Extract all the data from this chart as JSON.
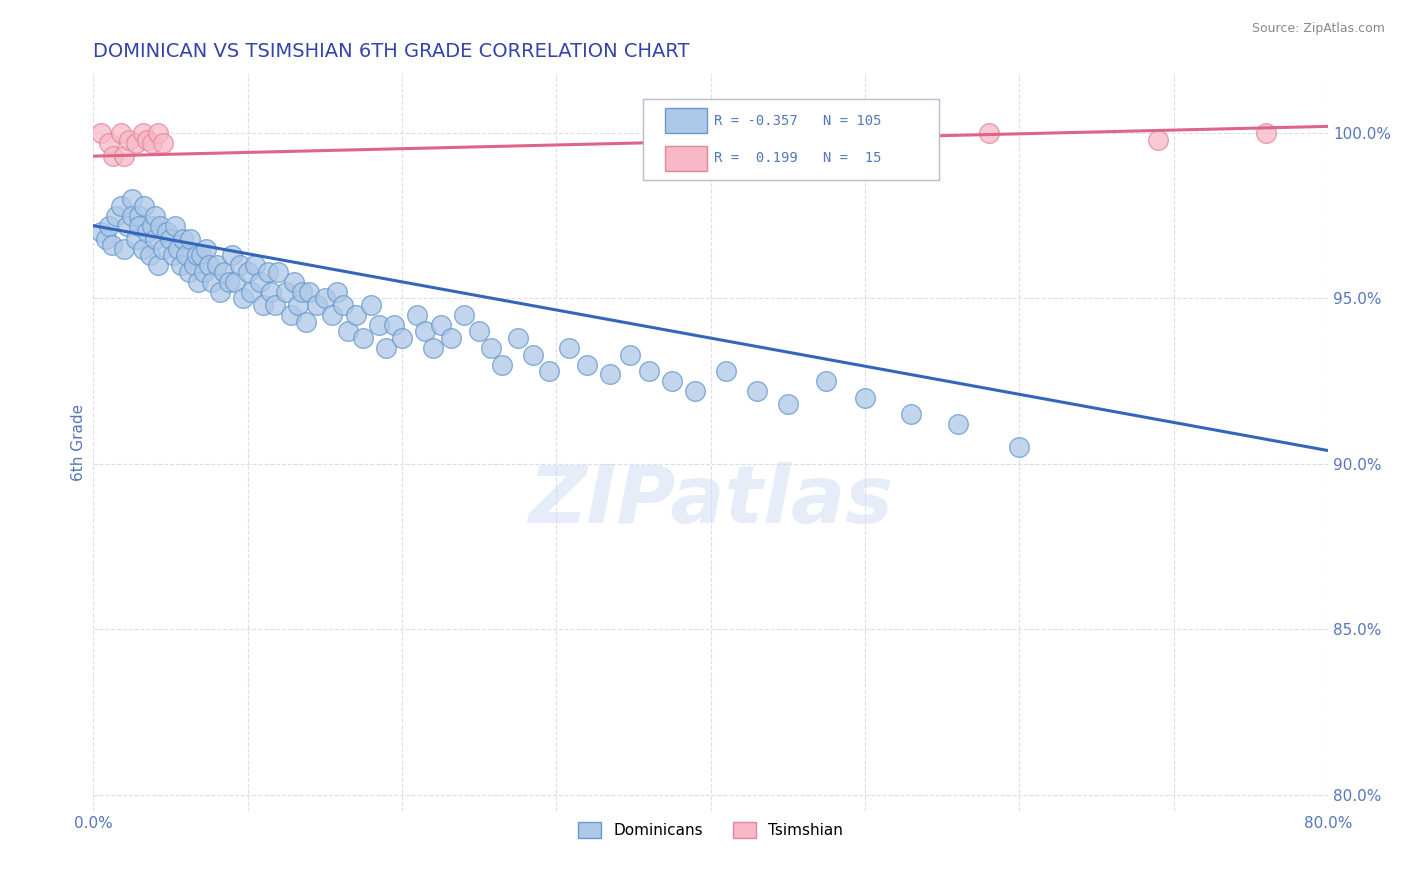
{
  "title": "DOMINICAN VS TSIMSHIAN 6TH GRADE CORRELATION CHART",
  "source": "Source: ZipAtlas.com",
  "ylabel": "6th Grade",
  "x_min": 0.0,
  "x_max": 0.8,
  "y_min": 0.795,
  "y_max": 1.018,
  "x_ticks": [
    0.0,
    0.1,
    0.2,
    0.3,
    0.4,
    0.5,
    0.6,
    0.7,
    0.8
  ],
  "y_ticks": [
    0.8,
    0.85,
    0.9,
    0.95,
    1.0
  ],
  "y_tick_labels": [
    "80.0%",
    "85.0%",
    "90.0%",
    "95.0%",
    "100.0%"
  ],
  "blue_R": -0.357,
  "blue_N": 105,
  "pink_R": 0.199,
  "pink_N": 15,
  "blue_color": "#aec8e8",
  "blue_edge": "#6699cc",
  "blue_line_color": "#3366bb",
  "pink_color": "#f8b8c8",
  "pink_edge": "#e08898",
  "pink_line_color": "#dd6688",
  "legend_blue_label": "Dominicans",
  "legend_pink_label": "Tsimshian",
  "title_color": "#3344aa",
  "tick_color": "#5577bb",
  "grid_color": "#ddddee",
  "watermark": "ZIPatlas",
  "blue_scatter_x": [
    0.005,
    0.008,
    0.01,
    0.012,
    0.015,
    0.018,
    0.02,
    0.022,
    0.025,
    0.025,
    0.028,
    0.03,
    0.03,
    0.032,
    0.033,
    0.035,
    0.037,
    0.038,
    0.04,
    0.04,
    0.042,
    0.043,
    0.045,
    0.048,
    0.05,
    0.052,
    0.053,
    0.055,
    0.057,
    0.058,
    0.06,
    0.062,
    0.063,
    0.065,
    0.067,
    0.068,
    0.07,
    0.072,
    0.073,
    0.075,
    0.077,
    0.08,
    0.082,
    0.085,
    0.088,
    0.09,
    0.092,
    0.095,
    0.097,
    0.1,
    0.102,
    0.105,
    0.108,
    0.11,
    0.113,
    0.115,
    0.118,
    0.12,
    0.125,
    0.128,
    0.13,
    0.133,
    0.135,
    0.138,
    0.14,
    0.145,
    0.15,
    0.155,
    0.158,
    0.162,
    0.165,
    0.17,
    0.175,
    0.18,
    0.185,
    0.19,
    0.195,
    0.2,
    0.21,
    0.215,
    0.22,
    0.225,
    0.232,
    0.24,
    0.25,
    0.258,
    0.265,
    0.275,
    0.285,
    0.295,
    0.308,
    0.32,
    0.335,
    0.348,
    0.36,
    0.375,
    0.39,
    0.41,
    0.43,
    0.45,
    0.475,
    0.5,
    0.53,
    0.56,
    0.6
  ],
  "blue_scatter_y": [
    0.97,
    0.968,
    0.972,
    0.966,
    0.975,
    0.978,
    0.965,
    0.972,
    0.98,
    0.975,
    0.968,
    0.975,
    0.972,
    0.965,
    0.978,
    0.97,
    0.963,
    0.972,
    0.968,
    0.975,
    0.96,
    0.972,
    0.965,
    0.97,
    0.968,
    0.963,
    0.972,
    0.965,
    0.96,
    0.968,
    0.963,
    0.958,
    0.968,
    0.96,
    0.963,
    0.955,
    0.963,
    0.958,
    0.965,
    0.96,
    0.955,
    0.96,
    0.952,
    0.958,
    0.955,
    0.963,
    0.955,
    0.96,
    0.95,
    0.958,
    0.952,
    0.96,
    0.955,
    0.948,
    0.958,
    0.952,
    0.948,
    0.958,
    0.952,
    0.945,
    0.955,
    0.948,
    0.952,
    0.943,
    0.952,
    0.948,
    0.95,
    0.945,
    0.952,
    0.948,
    0.94,
    0.945,
    0.938,
    0.948,
    0.942,
    0.935,
    0.942,
    0.938,
    0.945,
    0.94,
    0.935,
    0.942,
    0.938,
    0.945,
    0.94,
    0.935,
    0.93,
    0.938,
    0.933,
    0.928,
    0.935,
    0.93,
    0.927,
    0.933,
    0.928,
    0.925,
    0.922,
    0.928,
    0.922,
    0.918,
    0.925,
    0.92,
    0.915,
    0.912,
    0.905
  ],
  "pink_scatter_x": [
    0.005,
    0.01,
    0.013,
    0.018,
    0.02,
    0.023,
    0.028,
    0.032,
    0.035,
    0.038,
    0.042,
    0.045,
    0.58,
    0.69,
    0.76
  ],
  "pink_scatter_y": [
    1.0,
    0.997,
    0.993,
    1.0,
    0.993,
    0.998,
    0.997,
    1.0,
    0.998,
    0.997,
    1.0,
    0.997,
    1.0,
    0.998,
    1.0
  ],
  "blue_trendline_x": [
    0.0,
    0.8
  ],
  "blue_trendline_y": [
    0.972,
    0.904
  ],
  "pink_trendline_x": [
    0.0,
    0.8
  ],
  "pink_trendline_y": [
    0.993,
    1.002
  ]
}
